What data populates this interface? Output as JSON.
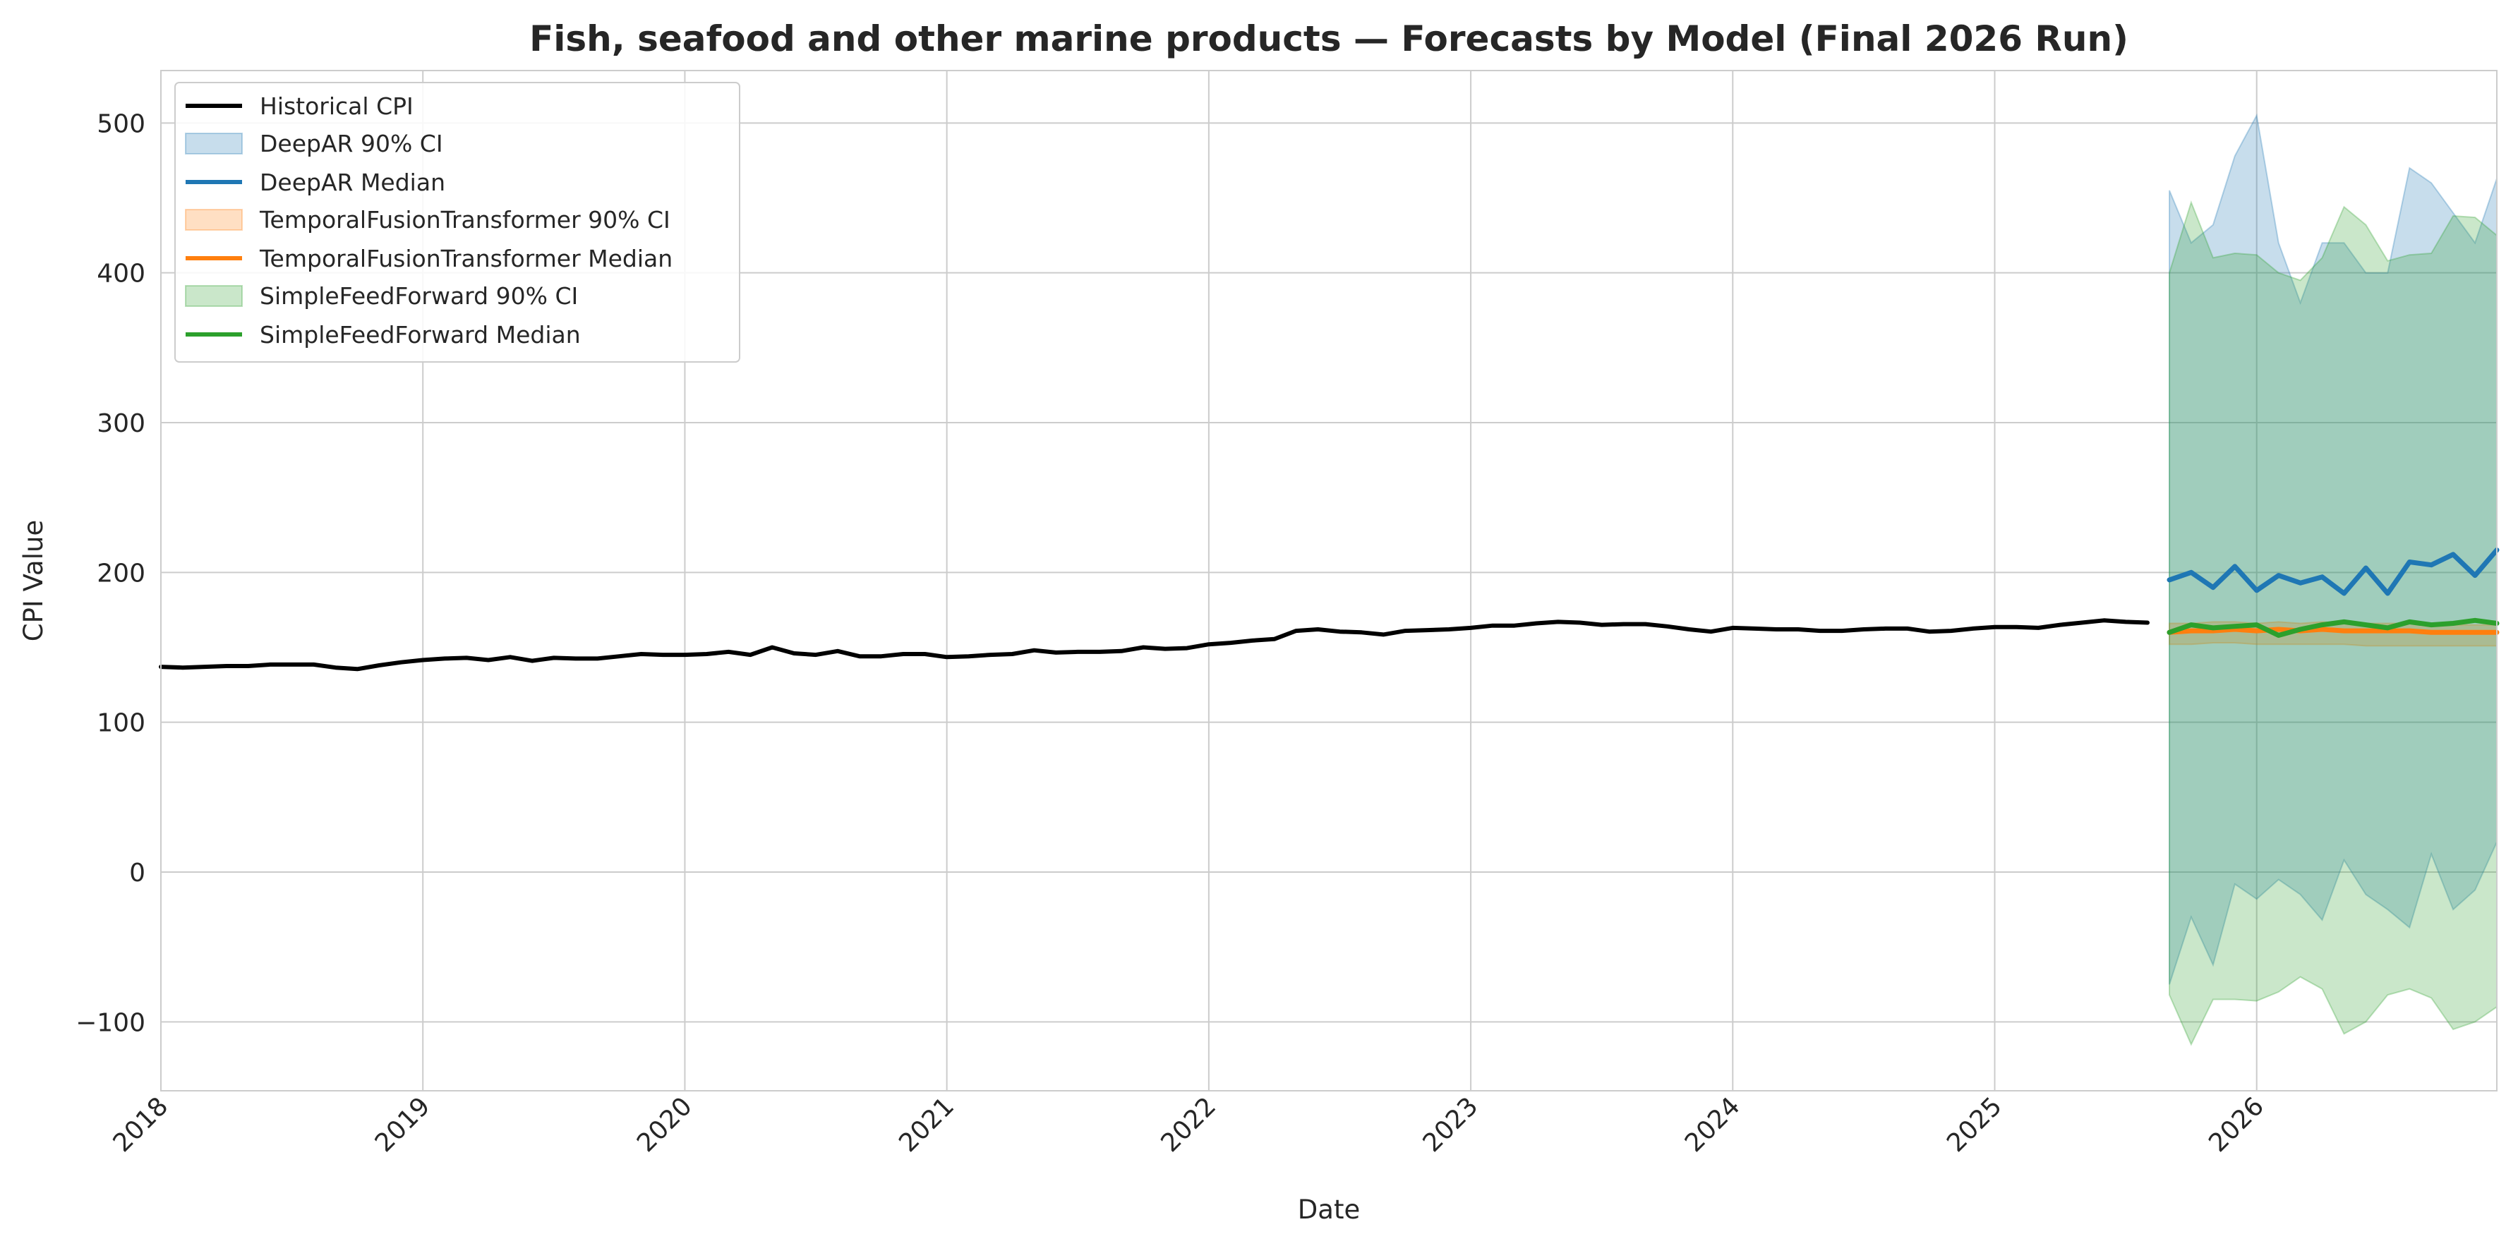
{
  "chart_data": {
    "type": "line",
    "title": "Fish, seafood and other marine products — Forecasts by Model (Final 2026 Run)",
    "xlabel": "Date",
    "ylabel": "CPI Value",
    "x_range": [
      "2018-01",
      "2026-12"
    ],
    "ylim": [
      -146,
      535
    ],
    "y_ticks": [
      -100,
      0,
      100,
      200,
      300,
      400,
      500
    ],
    "y_tick_labels": [
      "−100",
      "0",
      "100",
      "200",
      "300",
      "400",
      "500"
    ],
    "x_ticks": [
      "2018-01",
      "2019-01",
      "2020-01",
      "2021-01",
      "2022-01",
      "2023-01",
      "2024-01",
      "2025-01",
      "2026-01"
    ],
    "x_tick_labels": [
      "2018",
      "2019",
      "2020",
      "2021",
      "2022",
      "2023",
      "2024",
      "2025",
      "2026"
    ],
    "grid": true,
    "legend_position": "top-left",
    "historical": {
      "name": "Historical CPI",
      "color": "#000000",
      "x": [
        "2018-01",
        "2018-02",
        "2018-03",
        "2018-04",
        "2018-05",
        "2018-06",
        "2018-07",
        "2018-08",
        "2018-09",
        "2018-10",
        "2018-11",
        "2018-12",
        "2019-01",
        "2019-02",
        "2019-03",
        "2019-04",
        "2019-05",
        "2019-06",
        "2019-07",
        "2019-08",
        "2019-09",
        "2019-10",
        "2019-11",
        "2019-12",
        "2020-01",
        "2020-02",
        "2020-03",
        "2020-04",
        "2020-05",
        "2020-06",
        "2020-07",
        "2020-08",
        "2020-09",
        "2020-10",
        "2020-11",
        "2020-12",
        "2021-01",
        "2021-02",
        "2021-03",
        "2021-04",
        "2021-05",
        "2021-06",
        "2021-07",
        "2021-08",
        "2021-09",
        "2021-10",
        "2021-11",
        "2021-12",
        "2022-01",
        "2022-02",
        "2022-03",
        "2022-04",
        "2022-05",
        "2022-06",
        "2022-07",
        "2022-08",
        "2022-09",
        "2022-10",
        "2022-11",
        "2022-12",
        "2023-01",
        "2023-02",
        "2023-03",
        "2023-04",
        "2023-05",
        "2023-06",
        "2023-07",
        "2023-08",
        "2023-09",
        "2023-10",
        "2023-11",
        "2023-12",
        "2024-01",
        "2024-02",
        "2024-03",
        "2024-04",
        "2024-05",
        "2024-06",
        "2024-07",
        "2024-08",
        "2024-09",
        "2024-10",
        "2024-11",
        "2024-12",
        "2025-01",
        "2025-02",
        "2025-03",
        "2025-04",
        "2025-05",
        "2025-06",
        "2025-07",
        "2025-08"
      ],
      "values": [
        137,
        136.5,
        137,
        137.5,
        137.5,
        138.5,
        138.5,
        138.5,
        136.5,
        135.5,
        138,
        140,
        141.5,
        142.5,
        143,
        141.5,
        143.5,
        141,
        143,
        142.5,
        142.5,
        144,
        145.5,
        145,
        145,
        145.5,
        147,
        145,
        150,
        146,
        145,
        147.5,
        144,
        144,
        145.5,
        145.5,
        143.5,
        144,
        145,
        145.5,
        148,
        146.5,
        147,
        147,
        147.5,
        150,
        149,
        149.5,
        152,
        153,
        154.5,
        155.5,
        161,
        162,
        160.5,
        160,
        158.5,
        161,
        161.5,
        162,
        163,
        164.5,
        164.5,
        166,
        167,
        166.5,
        165,
        165.5,
        165.5,
        164,
        162,
        160.5,
        163,
        162.5,
        162,
        162,
        161,
        161,
        162,
        162.5,
        162.5,
        160.5,
        161,
        162.5,
        163.5,
        163.5,
        163,
        165,
        166.5,
        168,
        167,
        166.5
      ]
    },
    "forecast_x": [
      "2025-09",
      "2025-10",
      "2025-11",
      "2025-12",
      "2026-01",
      "2026-02",
      "2026-03",
      "2026-04",
      "2026-05",
      "2026-06",
      "2026-07",
      "2026-08",
      "2026-09",
      "2026-10",
      "2026-11",
      "2026-12"
    ],
    "series": [
      {
        "name": "DeepAR",
        "median_label": "DeepAR Median",
        "ci_label": "DeepAR 90% CI",
        "color": "#1f77b4",
        "median": [
          195,
          200,
          190,
          204,
          188,
          198,
          193,
          197,
          186,
          203,
          186,
          207,
          205,
          212,
          198,
          215
        ],
        "upper": [
          455,
          420,
          432,
          478,
          505,
          420,
          380,
          420,
          420,
          400,
          400,
          470,
          460,
          440,
          420,
          463
        ],
        "lower": [
          -75,
          -30,
          -62,
          -8,
          -18,
          -5,
          -15,
          -32,
          8,
          -15,
          -25,
          -37,
          12,
          -25,
          -12,
          20
        ]
      },
      {
        "name": "TemporalFusionTransformer",
        "median_label": "TemporalFusionTransformer Median",
        "ci_label": "TemporalFusionTransformer 90% CI",
        "color": "#ff7f0e",
        "median": [
          160,
          161,
          161,
          162,
          161,
          162,
          161,
          162,
          161,
          161,
          161,
          161,
          160,
          160,
          160,
          160
        ],
        "upper": [
          166,
          166,
          167,
          167,
          166,
          167,
          166,
          167,
          166,
          166,
          166,
          166,
          165,
          165,
          165,
          165
        ],
        "lower": [
          152,
          152,
          153,
          153,
          152,
          152,
          152,
          152,
          152,
          151,
          151,
          151,
          151,
          151,
          151,
          151
        ]
      },
      {
        "name": "SimpleFeedForward",
        "median_label": "SimpleFeedForward Median",
        "ci_label": "SimpleFeedForward 90% CI",
        "color": "#2ca02c",
        "median": [
          160,
          165,
          163,
          164,
          165,
          158,
          162,
          165,
          167,
          165,
          163,
          167,
          165,
          166,
          168,
          166
        ],
        "upper": [
          400,
          447,
          410,
          413,
          412,
          400,
          395,
          410,
          444,
          432,
          408,
          412,
          413,
          438,
          437,
          425
        ],
        "lower": [
          -82,
          -115,
          -85,
          -85,
          -86,
          -80,
          -70,
          -78,
          -108,
          -100,
          -82,
          -78,
          -84,
          -105,
          -100,
          -90
        ]
      }
    ]
  }
}
